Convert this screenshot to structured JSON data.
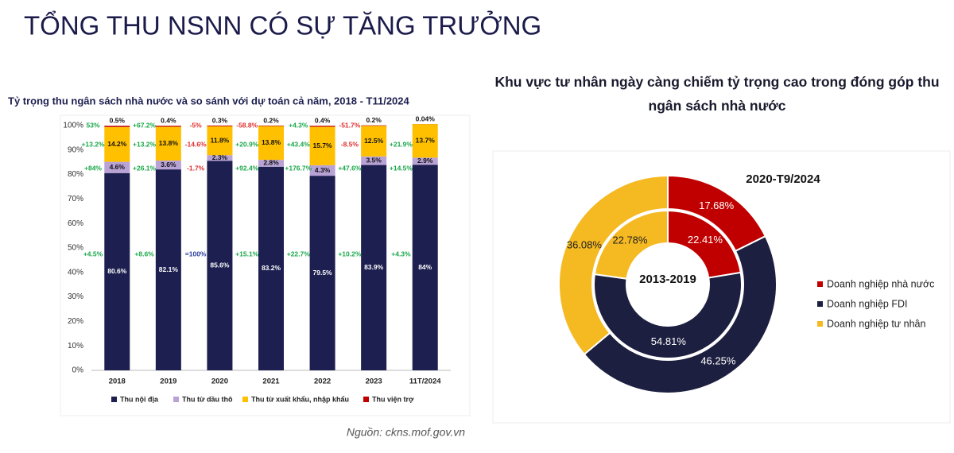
{
  "header": {
    "title": "TỔNG THU NSNN CÓ SỰ TĂNG TRƯỞNG"
  },
  "chart_data": [
    {
      "type": "stacked_bar",
      "title": "Tỷ trọng thu ngân sách nhà nước và so sánh với dự toán cả năm, 2018 - T11/2024",
      "categories": [
        "2018",
        "2019",
        "2020",
        "2021",
        "2022",
        "2023",
        "11T/2024"
      ],
      "ylim": [
        0,
        100
      ],
      "yticks": [
        {
          "value": 0,
          "label": "0%"
        },
        {
          "value": 10,
          "label": "10%"
        },
        {
          "value": 20,
          "label": "20%"
        },
        {
          "value": 30,
          "label": "30%"
        },
        {
          "value": 40,
          "label": "40%"
        },
        {
          "value": 50,
          "label": "50%"
        },
        {
          "value": 60,
          "label": "60%"
        },
        {
          "value": 70,
          "label": "70%"
        },
        {
          "value": 80,
          "label": "80%"
        },
        {
          "value": 90,
          "label": "90%"
        },
        {
          "value": 100,
          "label": "100%"
        }
      ],
      "series": [
        {
          "name": "Thu nội địa",
          "color": "#1c1f4f",
          "values": [
            80.6,
            82.1,
            85.6,
            83.2,
            79.5,
            83.9,
            84
          ],
          "value_labels": [
            "80.6%",
            "82.1%",
            "85.6%",
            "83.2%",
            "79.5%",
            "83.9%",
            "84%"
          ],
          "comparison_labels": [
            "+4.5%",
            "+8.6%",
            "=100%",
            "+15.1%",
            "+22.7%",
            "+10.2%",
            "+4.3%"
          ]
        },
        {
          "name": "Thu từ dầu thô",
          "color": "#b9a3d6",
          "values": [
            4.6,
            3.6,
            2.3,
            2.8,
            4.3,
            3.5,
            2.9
          ],
          "value_labels": [
            "4.6%",
            "3.6%",
            "2.3%",
            "2.8%",
            "4.3%",
            "3.5%",
            "2.9%"
          ],
          "comparison_labels": [
            "+84%",
            "+26.1%",
            "-1.7%",
            "+92.4%",
            "+176.7%",
            "+47.6%",
            "+14.5%"
          ]
        },
        {
          "name": "Thu từ xuất khẩu, nhập khẩu",
          "color": "#ffc000",
          "values": [
            14.2,
            13.8,
            11.8,
            13.8,
            15.7,
            12.5,
            13.7
          ],
          "value_labels": [
            "14.2%",
            "13.8%",
            "11.8%",
            "13.8%",
            "15.7%",
            "12.5%",
            "13.7%"
          ],
          "comparison_labels": [
            "+13.2%",
            "+13.2%",
            "-14.6%",
            "+20.9%",
            "+43.4%",
            "-8.5%",
            "+21.9%"
          ]
        },
        {
          "name": "Thu viện trợ",
          "color": "#c00000",
          "values": [
            0.5,
            0.4,
            0.3,
            0.2,
            0.4,
            0.2,
            0.04
          ],
          "value_labels": [
            "0.5%",
            "0.4%",
            "0.3%",
            "0.2%",
            "0.4%",
            "0.2%",
            "0.04%"
          ],
          "comparison_labels": [
            "53%",
            "+67.2%",
            "-5%",
            "-58.8%",
            "+4.3%",
            "-51.7%",
            null
          ]
        }
      ],
      "source": "Nguồn: ckns.mof.gov.vn"
    },
    {
      "type": "donut",
      "title": "Khu vực tư nhân ngày càng chiếm tỷ trọng cao trong đóng góp thu ngân sách nhà nước",
      "categories": [
        "Doanh nghiệp nhà nước",
        "Doanh nghiệp FDI",
        "Doanh nghiệp tư nhân"
      ],
      "colors": [
        "#c00000",
        "#1c1f3f",
        "#f5b921"
      ],
      "series": [
        {
          "name": "2020-T9/2024",
          "values": [
            17.68,
            46.25,
            36.08
          ],
          "value_labels": [
            "17.68%",
            "46.25%",
            "36.08%"
          ]
        },
        {
          "name": "2013-2019",
          "values": [
            22.41,
            54.81,
            22.78
          ],
          "value_labels": [
            "22.41%",
            "54.81%",
            "22.78%"
          ]
        }
      ]
    }
  ]
}
